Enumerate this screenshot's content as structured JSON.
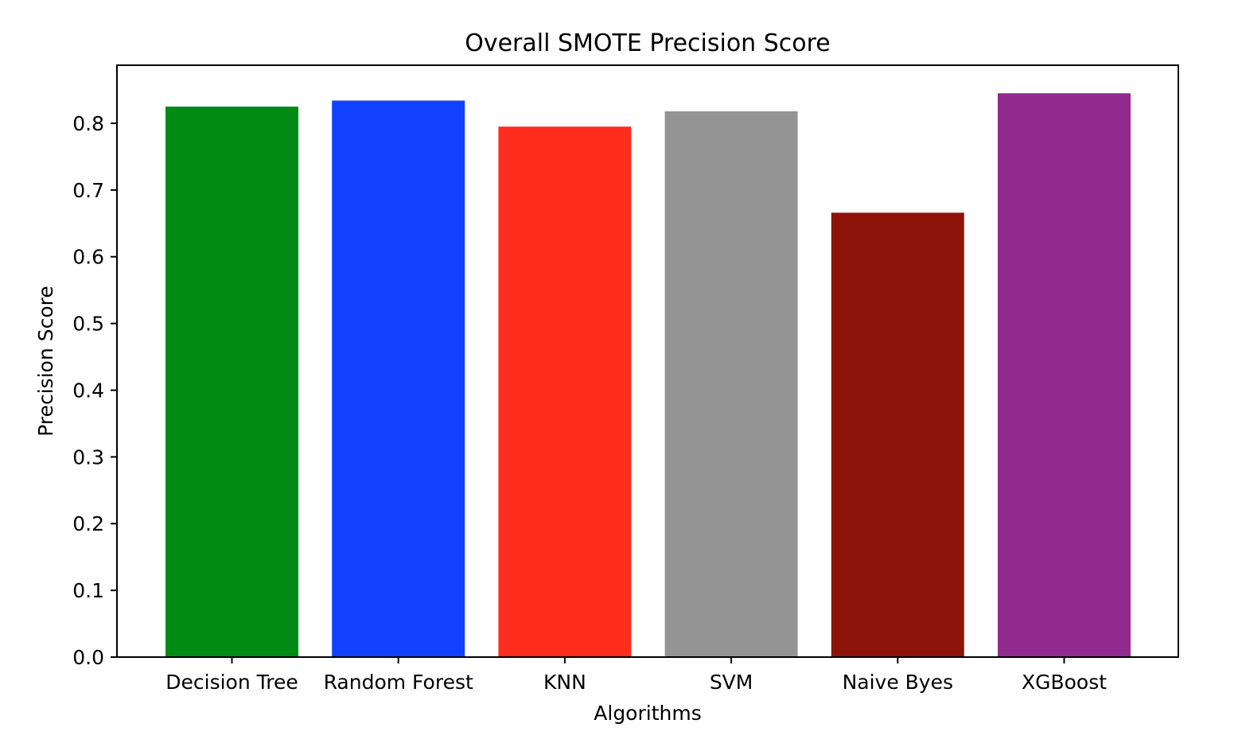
{
  "chart_data": {
    "type": "bar",
    "title": "Overall SMOTE Precision Score",
    "xlabel": "Algorithms",
    "ylabel": "Precision Score",
    "categories": [
      "Decision Tree",
      "Random Forest",
      "KNN",
      "SVM",
      "Naive Byes",
      "XGBoost"
    ],
    "values": [
      0.825,
      0.834,
      0.795,
      0.818,
      0.666,
      0.845
    ],
    "colors": [
      "#008b14",
      "#1240ff",
      "#ff2d1e",
      "#949494",
      "#8e130a",
      "#902a8e"
    ],
    "ylim": [
      0,
      0.887
    ],
    "yticks": [
      0.0,
      0.1,
      0.2,
      0.3,
      0.4,
      0.5,
      0.6,
      0.7,
      0.8
    ],
    "ytick_labels": [
      "0.0",
      "0.1",
      "0.2",
      "0.3",
      "0.4",
      "0.5",
      "0.6",
      "0.7",
      "0.8"
    ],
    "grid": false,
    "legend": false
  }
}
